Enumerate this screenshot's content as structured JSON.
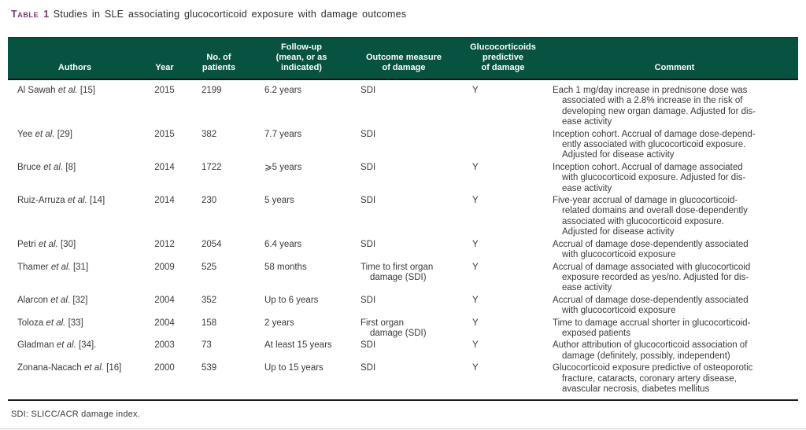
{
  "header": {
    "table_label": "Table 1",
    "title": "Studies in SLE associating glucocorticoid exposure with damage outcomes"
  },
  "footnote": "SDI: SLICC/ACR damage index.",
  "colors": {
    "header_bg": "#075241",
    "header_text": "#ffffff",
    "title_label": "#7b3c6e",
    "body_text": "#3a3a3a",
    "rule_dark": "#1a1a1a",
    "rule_light": "#cfcfcf"
  },
  "table": {
    "columns": [
      {
        "key": "authors",
        "label_lines": [
          "Authors"
        ]
      },
      {
        "key": "year",
        "label_lines": [
          "Year"
        ]
      },
      {
        "key": "patients",
        "label_lines": [
          "No. of",
          "patients"
        ]
      },
      {
        "key": "followup",
        "label_lines": [
          "Follow-up",
          "(mean, or as",
          "indicated)"
        ]
      },
      {
        "key": "outcome",
        "label_lines": [
          "Outcome measure",
          "of damage"
        ]
      },
      {
        "key": "predictive",
        "label_lines": [
          "Glucocorticoids",
          "predictive",
          "of damage"
        ]
      },
      {
        "key": "comment",
        "label_lines": [
          "Comment"
        ]
      }
    ],
    "rows": [
      {
        "authors": {
          "pre": "Al Sawah ",
          "etal": "et al.",
          "ref": " [15]"
        },
        "year": "2015",
        "patients": "2199",
        "followup": "6.2 years",
        "outcome_lines": [
          "SDI"
        ],
        "predictive": "Y",
        "comment_lines": [
          "Each 1 mg/day increase in prednisone dose was",
          "associated with a 2.8% increase in the risk of",
          "developing new organ damage. Adjusted for dis-",
          "ease activity"
        ]
      },
      {
        "authors": {
          "pre": "Yee ",
          "etal": "et al.",
          "ref": " [29]"
        },
        "year": "2015",
        "patients": "382",
        "followup": "7.7 years",
        "outcome_lines": [
          "SDI"
        ],
        "predictive": "",
        "comment_lines": [
          "Inception cohort. Accrual of damage dose-depend-",
          "ently associated with glucocorticoid exposure.",
          "Adjusted for disease activity"
        ]
      },
      {
        "authors": {
          "pre": "Bruce ",
          "etal": "et al.",
          "ref": " [8]"
        },
        "year": "2014",
        "patients": "1722",
        "followup": "⩾5 years",
        "outcome_lines": [
          "SDI"
        ],
        "predictive": "Y",
        "comment_lines": [
          "Inception cohort. Accrual of damage associated",
          "with glucocorticoid exposure. Adjusted for dis-",
          "ease activity"
        ]
      },
      {
        "authors": {
          "pre": "Ruiz-Arruza ",
          "etal": "et al.",
          "ref": " [14]"
        },
        "year": "2014",
        "patients": "230",
        "followup": "5 years",
        "outcome_lines": [
          "SDI"
        ],
        "predictive": "Y",
        "comment_lines": [
          "Five-year accrual of damage in glucocorticoid-",
          "related domains and overall dose-dependently",
          "associated with glucocorticoid exposure.",
          "Adjusted for disease activity"
        ]
      },
      {
        "authors": {
          "pre": "Petri ",
          "etal": "et al.",
          "ref": " [30]"
        },
        "year": "2012",
        "patients": "2054",
        "followup": "6.4 years",
        "outcome_lines": [
          "SDI"
        ],
        "predictive": "Y",
        "comment_lines": [
          "Accrual of damage dose-dependently associated",
          "with glucocorticoid exposure"
        ]
      },
      {
        "authors": {
          "pre": "Thamer ",
          "etal": "et al.",
          "ref": " [31]"
        },
        "year": "2009",
        "patients": "525",
        "followup": "58 months",
        "outcome_lines": [
          "Time to first organ",
          "damage (SDI)"
        ],
        "predictive": "Y",
        "comment_lines": [
          "Accrual of damage associated with glucocorticoid",
          "exposure recorded as yes/no. Adjusted for dis-",
          "ease activity"
        ]
      },
      {
        "authors": {
          "pre": "Alarcon ",
          "etal": "et al.",
          "ref": " [32]"
        },
        "year": "2004",
        "patients": "352",
        "followup": "Up to 6 years",
        "outcome_lines": [
          "SDI"
        ],
        "predictive": "Y",
        "comment_lines": [
          "Accrual of damage dose-dependently associated",
          "with glucocorticoid exposure"
        ]
      },
      {
        "authors": {
          "pre": "Toloza ",
          "etal": "et al.",
          "ref": " [33]"
        },
        "year": "2004",
        "patients": "158",
        "followup": "2 years",
        "outcome_lines": [
          "First organ",
          "damage (SDI)"
        ],
        "predictive": "Y",
        "comment_lines": [
          "Time to damage accrual shorter in glucocorticoid-",
          "exposed patients"
        ]
      },
      {
        "authors": {
          "pre": "Gladman ",
          "etal": "et al.",
          "ref": " [34]."
        },
        "year": "2003",
        "patients": "73",
        "followup": "At least 15 years",
        "outcome_lines": [
          "SDI"
        ],
        "predictive": "Y",
        "comment_lines": [
          "Author attribution of glucocorticoid association of",
          "damage (definitely, possibly, independent)"
        ]
      },
      {
        "authors": {
          "pre": "Zonana-Nacach ",
          "etal": "et al.",
          "ref": " [16]"
        },
        "year": "2000",
        "patients": "539",
        "followup": "Up to 15 years",
        "outcome_lines": [
          "SDI"
        ],
        "predictive": "Y",
        "comment_lines": [
          "Glucocorticoid exposure predictive of osteoporotic",
          "fracture, cataracts, coronary artery disease,",
          "avascular necrosis, diabetes mellitus"
        ]
      }
    ]
  }
}
